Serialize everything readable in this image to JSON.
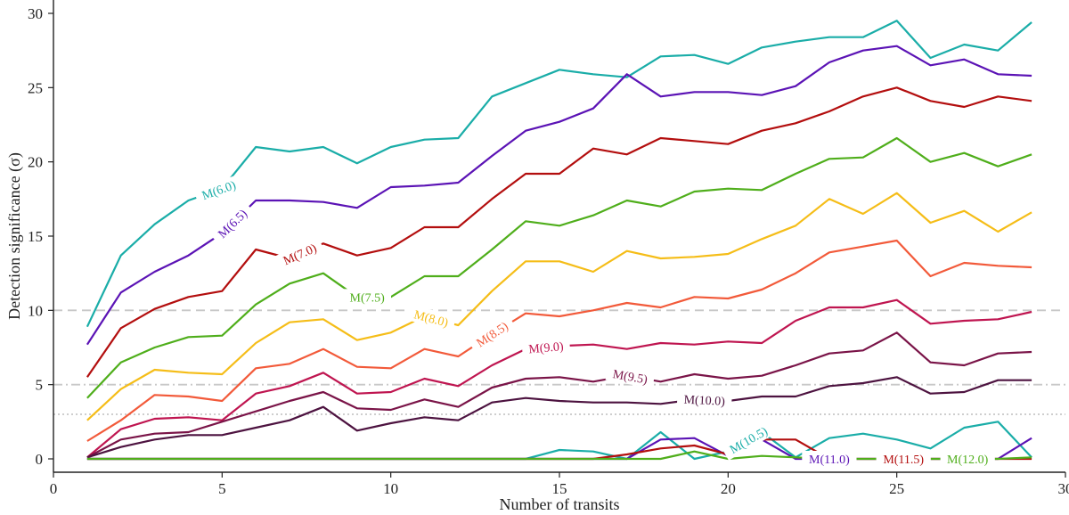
{
  "chart_data": {
    "type": "line",
    "title": "",
    "xlabel": "Number of transits",
    "ylabel": "Detection significance (σ)",
    "xlim": [
      0,
      30
    ],
    "ylim": [
      -0.9,
      30.9
    ],
    "xticks": [
      0,
      5,
      10,
      15,
      20,
      25,
      30
    ],
    "yticks": [
      0,
      5,
      10,
      15,
      20,
      25,
      30
    ],
    "grid": false,
    "reference_lines": [
      {
        "y": 10,
        "style": "dashed"
      },
      {
        "y": 5,
        "style": "dashdot"
      },
      {
        "y": 3,
        "style": "dotted"
      }
    ],
    "x": [
      1,
      2,
      3,
      4,
      5,
      6,
      7,
      8,
      9,
      10,
      11,
      12,
      13,
      14,
      15,
      16,
      17,
      18,
      19,
      20,
      21,
      22,
      23,
      24,
      25,
      26,
      27,
      28,
      29
    ],
    "series": [
      {
        "name": "M(6.0)",
        "color": "#1aada8",
        "label_x": 4.9,
        "values": [
          8.9,
          13.7,
          15.8,
          17.4,
          18.2,
          21.0,
          20.7,
          21.0,
          19.9,
          21.0,
          21.5,
          21.6,
          24.4,
          25.3,
          26.2,
          25.9,
          25.7,
          27.1,
          27.2,
          26.6,
          27.7,
          28.1,
          28.4,
          28.4,
          29.5,
          27.0,
          27.9,
          27.5,
          29.4
        ]
      },
      {
        "name": "M(6.5)",
        "color": "#5b13b5",
        "label_x": 5.3,
        "values": [
          7.7,
          11.2,
          12.6,
          13.7,
          15.2,
          17.4,
          17.4,
          17.3,
          16.9,
          18.3,
          18.4,
          18.6,
          20.4,
          22.1,
          22.7,
          23.6,
          25.9,
          24.4,
          24.7,
          24.7,
          24.5,
          25.1,
          26.7,
          27.5,
          27.8,
          26.5,
          26.9,
          25.9,
          25.8
        ]
      },
      {
        "name": "M(7.0)",
        "color": "#b30e0e",
        "label_x": 7.3,
        "values": [
          5.5,
          8.8,
          10.1,
          10.9,
          11.3,
          14.1,
          13.5,
          14.5,
          13.7,
          14.2,
          15.6,
          15.6,
          17.5,
          19.2,
          19.2,
          20.9,
          20.5,
          21.6,
          21.4,
          21.2,
          22.1,
          22.6,
          23.4,
          24.4,
          25.0,
          24.1,
          23.7,
          24.4,
          24.1
        ]
      },
      {
        "name": "M(7.5)",
        "color": "#4fae1b",
        "label_x": 9.3,
        "values": [
          4.1,
          6.5,
          7.5,
          8.2,
          8.3,
          10.4,
          11.8,
          12.5,
          10.9,
          10.9,
          12.3,
          12.3,
          14.1,
          16.0,
          15.7,
          16.4,
          17.4,
          17.0,
          18.0,
          18.2,
          18.1,
          19.2,
          20.2,
          20.3,
          21.6,
          20.0,
          20.6,
          19.7,
          20.5
        ]
      },
      {
        "name": "M(8.0)",
        "color": "#f5bd18",
        "label_x": 11.2,
        "values": [
          2.6,
          4.7,
          6.0,
          5.8,
          5.7,
          7.8,
          9.2,
          9.4,
          8.0,
          8.5,
          9.6,
          9.0,
          11.3,
          13.3,
          13.3,
          12.6,
          14.0,
          13.5,
          13.6,
          13.8,
          14.8,
          15.7,
          17.5,
          16.5,
          17.9,
          15.9,
          16.7,
          15.3,
          16.6
        ]
      },
      {
        "name": "M(8.5)",
        "color": "#f25a3a",
        "label_x": 13.0,
        "values": [
          1.2,
          2.6,
          4.3,
          4.2,
          3.9,
          6.1,
          6.4,
          7.4,
          6.2,
          6.1,
          7.4,
          6.9,
          8.4,
          9.8,
          9.6,
          10.0,
          10.5,
          10.2,
          10.9,
          10.8,
          11.4,
          12.5,
          13.9,
          14.3,
          14.7,
          12.3,
          13.2,
          13.0,
          12.9
        ]
      },
      {
        "name": "M(9.0)",
        "color": "#bf1550",
        "label_x": 14.6,
        "values": [
          0.1,
          2.0,
          2.7,
          2.8,
          2.6,
          4.4,
          4.9,
          5.8,
          4.4,
          4.5,
          5.4,
          4.9,
          6.3,
          7.4,
          7.6,
          7.7,
          7.4,
          7.8,
          7.7,
          7.9,
          7.8,
          9.3,
          10.2,
          10.2,
          10.7,
          9.1,
          9.3,
          9.4,
          9.9
        ]
      },
      {
        "name": "M(9.5)",
        "color": "#7a1448",
        "label_x": 17.1,
        "values": [
          0.1,
          1.3,
          1.7,
          1.8,
          2.5,
          3.2,
          3.9,
          4.5,
          3.4,
          3.3,
          4.0,
          3.5,
          4.8,
          5.4,
          5.5,
          5.2,
          5.6,
          5.2,
          5.7,
          5.4,
          5.6,
          6.3,
          7.1,
          7.3,
          8.5,
          6.5,
          6.3,
          7.1,
          7.2
        ]
      },
      {
        "name": "M(10.0)",
        "color": "#4d1340",
        "label_x": 19.3,
        "values": [
          0.1,
          0.8,
          1.3,
          1.6,
          1.6,
          2.1,
          2.6,
          3.5,
          1.9,
          2.4,
          2.8,
          2.6,
          3.8,
          4.1,
          3.9,
          3.8,
          3.8,
          3.7,
          4.0,
          3.9,
          4.2,
          4.2,
          4.9,
          5.1,
          5.5,
          4.4,
          4.5,
          5.3,
          5.3
        ]
      },
      {
        "name": "M(10.5)",
        "color": "#1aada8",
        "label_x": 20.6,
        "values": [
          0,
          0,
          0,
          0,
          0,
          0,
          0,
          0,
          0,
          0,
          0,
          0,
          0,
          0,
          0.6,
          0.5,
          0,
          1.8,
          0.0,
          0.5,
          1.8,
          0.1,
          1.4,
          1.7,
          1.3,
          0.7,
          2.1,
          2.5,
          0.1
        ]
      },
      {
        "name": "M(11.0)",
        "color": "#5b13b5",
        "label_x": 23.0,
        "values": [
          0,
          0,
          0,
          0,
          0,
          0,
          0,
          0,
          0,
          0,
          0,
          0,
          0,
          0,
          0,
          0,
          0,
          1.3,
          1.4,
          0.2,
          1.3,
          0,
          0,
          0,
          0,
          0,
          0,
          0,
          1.4
        ]
      },
      {
        "name": "M(11.5)",
        "color": "#b30e0e",
        "label_x": 25.2,
        "values": [
          0,
          0,
          0,
          0,
          0,
          0,
          0,
          0,
          0,
          0,
          0,
          0,
          0,
          0,
          0,
          0,
          0.3,
          0.7,
          0.9,
          0.3,
          1.3,
          1.3,
          0,
          0,
          0,
          0,
          0,
          0,
          0
        ]
      },
      {
        "name": "M(12.0)",
        "color": "#4fae1b",
        "label_x": 27.1,
        "values": [
          0,
          0,
          0,
          0,
          0,
          0,
          0,
          0,
          0,
          0,
          0,
          0,
          0,
          0,
          0,
          0,
          0,
          0,
          0.5,
          0,
          0.2,
          0.1,
          0,
          0,
          0,
          0,
          0,
          0,
          0.1
        ]
      }
    ]
  }
}
